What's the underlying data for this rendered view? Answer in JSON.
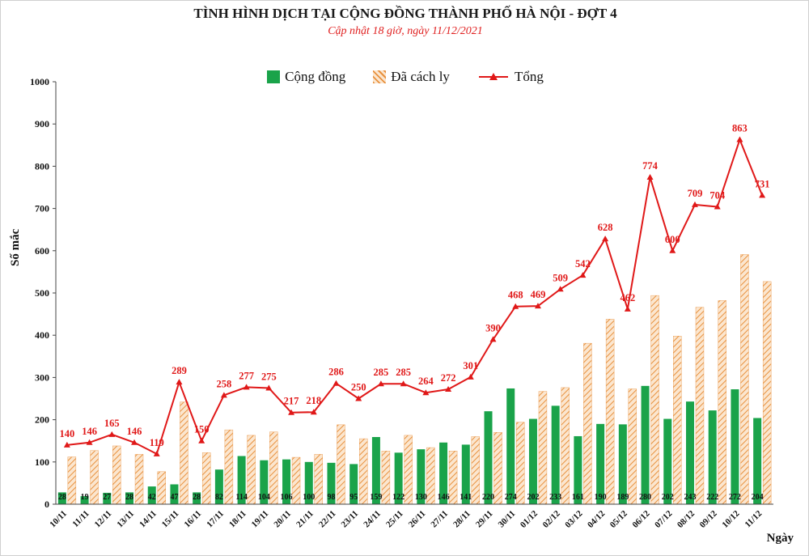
{
  "chart_data": {
    "type": "bar",
    "title": "TÌNH HÌNH DỊCH TẠI CỘNG ĐỒNG THÀNH PHỐ HÀ NỘI - ĐỢT 4",
    "subtitle": "Cập nhật 18 giờ, ngày 11/12/2021",
    "xlabel": "Ngày",
    "ylabel": "Số mắc",
    "ylim": [
      0,
      1000
    ],
    "yticks": [
      0,
      100,
      200,
      300,
      400,
      500,
      600,
      700,
      800,
      900,
      1000
    ],
    "legend_position": "top-center",
    "categories": [
      "10/11",
      "11/11",
      "12/11",
      "13/11",
      "14/11",
      "15/11",
      "16/11",
      "17/11",
      "18/11",
      "19/11",
      "20/11",
      "21/11",
      "22/11",
      "23/11",
      "24/11",
      "25/11",
      "26/11",
      "27/11",
      "28/11",
      "29/11",
      "30/11",
      "01/12",
      "02/12",
      "03/12",
      "04/12",
      "05/12",
      "06/12",
      "07/12",
      "08/12",
      "09/12",
      "10/12",
      "11/12"
    ],
    "series": [
      {
        "name": "Cộng đồng",
        "type": "bar",
        "color": "#1aa34a",
        "values": [
          28,
          19,
          27,
          28,
          42,
          47,
          28,
          82,
          114,
          104,
          106,
          100,
          98,
          95,
          159,
          122,
          130,
          146,
          141,
          220,
          274,
          202,
          233,
          161,
          190,
          189,
          280,
          202,
          243,
          222,
          272,
          204
        ]
      },
      {
        "name": "Đã cách ly",
        "type": "bar",
        "color": "#f0a860",
        "values": [
          112,
          127,
          138,
          118,
          77,
          242,
          122,
          176,
          163,
          171,
          111,
          118,
          188,
          155,
          126,
          163,
          134,
          126,
          160,
          170,
          194,
          267,
          276,
          381,
          438,
          273,
          494,
          398,
          466,
          482,
          591,
          527
        ]
      },
      {
        "name": "Tổng",
        "type": "line",
        "color": "#e01818",
        "values": [
          140,
          146,
          165,
          146,
          119,
          289,
          150,
          258,
          277,
          275,
          217,
          218,
          286,
          250,
          285,
          285,
          264,
          272,
          301,
          390,
          468,
          469,
          509,
          542,
          628,
          462,
          774,
          600,
          709,
          704,
          863,
          731
        ]
      }
    ]
  }
}
